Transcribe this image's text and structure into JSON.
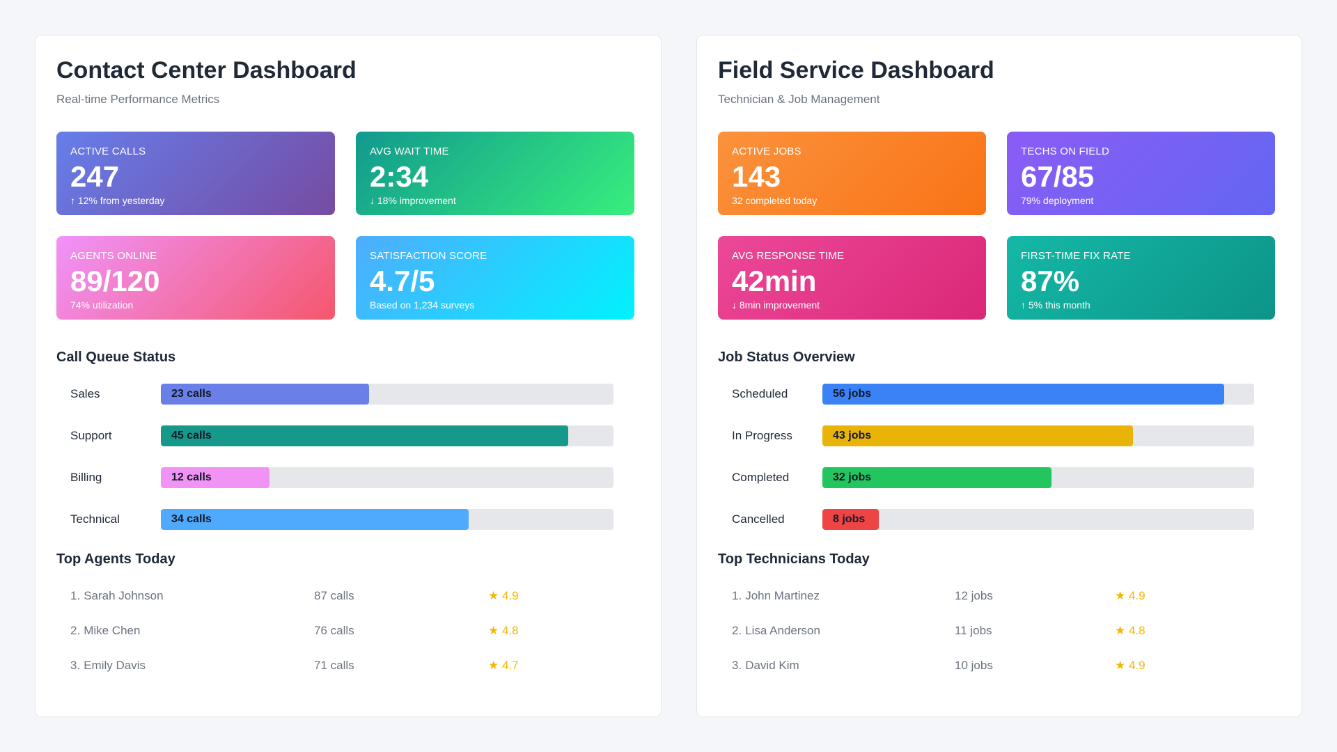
{
  "contact_center": {
    "title": "Contact Center Dashboard",
    "subtitle": "Real-time Performance Metrics",
    "cards": [
      {
        "label": "ACTIVE CALLS",
        "value": "247",
        "sub": "↑ 12% from yesterday",
        "gradient": [
          "#667eea",
          "#764ba2"
        ]
      },
      {
        "label": "AVG WAIT TIME",
        "value": "2:34",
        "sub": "↓ 18% improvement",
        "gradient": [
          "#11998e",
          "#38ef7d"
        ]
      },
      {
        "label": "AGENTS ONLINE",
        "value": "89/120",
        "sub": "74% utilization",
        "gradient": [
          "#f093fb",
          "#f5576c"
        ]
      },
      {
        "label": "SATISFACTION SCORE",
        "value": "4.7/5",
        "sub": "Based on 1,234 surveys",
        "gradient": [
          "#4facfe",
          "#00f2fe"
        ]
      }
    ],
    "queue_title": "Call Queue Status",
    "queue": [
      {
        "label": "Sales",
        "value_text": "23 calls",
        "fraction": 0.46,
        "color": "#6b7fe8"
      },
      {
        "label": "Support",
        "value_text": "45 calls",
        "fraction": 0.9,
        "color": "#16998a"
      },
      {
        "label": "Billing",
        "value_text": "12 calls",
        "fraction": 0.24,
        "color": "#f093f5"
      },
      {
        "label": "Technical",
        "value_text": "34 calls",
        "fraction": 0.68,
        "color": "#4fa9fd"
      }
    ],
    "top_title": "Top Agents Today",
    "top": [
      {
        "rank": "1.",
        "name": "Sarah Johnson",
        "count": "87 calls",
        "rating": "★ 4.9"
      },
      {
        "rank": "2.",
        "name": "Mike Chen",
        "count": "76 calls",
        "rating": "★ 4.8"
      },
      {
        "rank": "3.",
        "name": "Emily Davis",
        "count": "71 calls",
        "rating": "★ 4.7"
      }
    ]
  },
  "field_service": {
    "title": "Field Service Dashboard",
    "subtitle": "Technician & Job Management",
    "cards": [
      {
        "label": "ACTIVE JOBS",
        "value": "143",
        "sub": "32 completed today",
        "gradient": [
          "#fb923c",
          "#f97316"
        ]
      },
      {
        "label": "TECHS ON FIELD",
        "value": "67/85",
        "sub": "79% deployment",
        "gradient": [
          "#8b5cf6",
          "#6366f1"
        ]
      },
      {
        "label": "AVG RESPONSE TIME",
        "value": "42min",
        "sub": "↓ 8min improvement",
        "gradient": [
          "#ec4899",
          "#db2777"
        ]
      },
      {
        "label": "FIRST-TIME FIX RATE",
        "value": "87%",
        "sub": "↑ 5% this month",
        "gradient": [
          "#14b8a6",
          "#0d9488"
        ]
      }
    ],
    "queue_title": "Job Status Overview",
    "queue": [
      {
        "label": "Scheduled",
        "value_text": "56 jobs",
        "fraction": 0.93,
        "color": "#3b82f6"
      },
      {
        "label": "In Progress",
        "value_text": "43 jobs",
        "fraction": 0.72,
        "color": "#eab308"
      },
      {
        "label": "Completed",
        "value_text": "32 jobs",
        "fraction": 0.53,
        "color": "#22c55e"
      },
      {
        "label": "Cancelled",
        "value_text": "8 jobs",
        "fraction": 0.13,
        "color": "#ef4444"
      }
    ],
    "top_title": "Top Technicians Today",
    "top": [
      {
        "rank": "1.",
        "name": "John Martinez",
        "count": "12 jobs",
        "rating": "★ 4.9"
      },
      {
        "rank": "2.",
        "name": "Lisa Anderson",
        "count": "11 jobs",
        "rating": "★ 4.8"
      },
      {
        "rank": "3.",
        "name": "David Kim",
        "count": "10 jobs",
        "rating": "★ 4.9"
      }
    ]
  }
}
